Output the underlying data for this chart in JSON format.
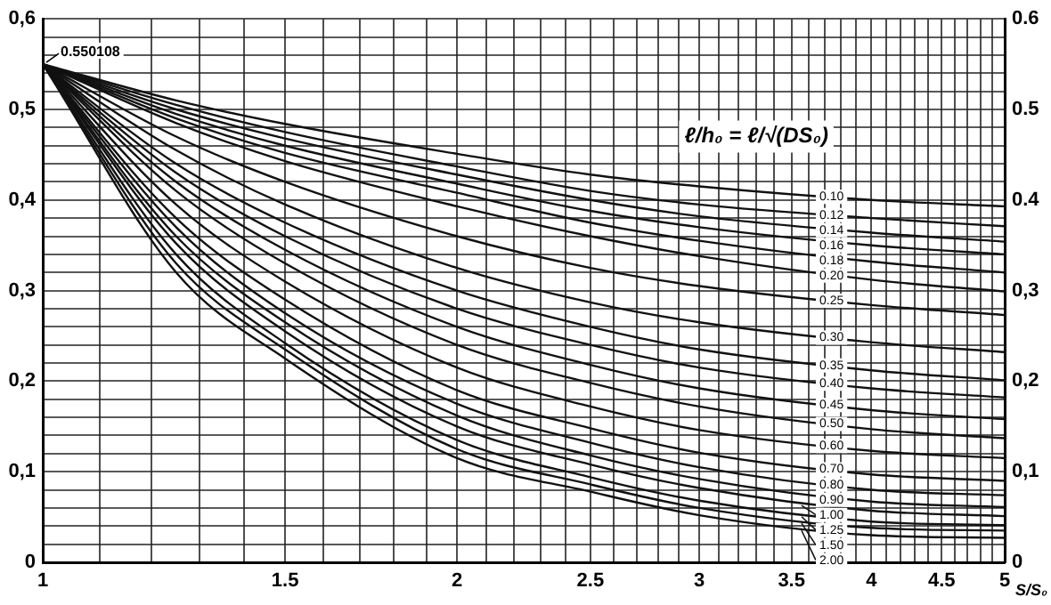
{
  "chart_data": {
    "type": "line",
    "log": "x",
    "xlabel": "S/S₀",
    "legend_title": "ℓ/h₀ = ℓ/√(DS₀)",
    "annotations": [
      {
        "text": "0.550108",
        "x": 1,
        "y": 0.55
      }
    ],
    "xlim": [
      1,
      5
    ],
    "xticks": [
      {
        "value": 1,
        "label": "1"
      },
      {
        "value": 1.1,
        "label": null
      },
      {
        "value": 1.2,
        "label": null
      },
      {
        "value": 1.3,
        "label": null
      },
      {
        "value": 1.4,
        "label": null
      },
      {
        "value": 1.5,
        "label": "1.5"
      },
      {
        "value": 1.6,
        "label": null
      },
      {
        "value": 1.7,
        "label": null
      },
      {
        "value": 1.8,
        "label": null
      },
      {
        "value": 1.9,
        "label": null
      },
      {
        "value": 2,
        "label": "2"
      },
      {
        "value": 2.1,
        "label": null
      },
      {
        "value": 2.2,
        "label": null
      },
      {
        "value": 2.3,
        "label": null
      },
      {
        "value": 2.4,
        "label": null
      },
      {
        "value": 2.5,
        "label": "2.5"
      },
      {
        "value": 2.6,
        "label": null
      },
      {
        "value": 2.7,
        "label": null
      },
      {
        "value": 2.8,
        "label": null
      },
      {
        "value": 2.9,
        "label": null
      },
      {
        "value": 3,
        "label": "3"
      },
      {
        "value": 3.1,
        "label": null
      },
      {
        "value": 3.2,
        "label": null
      },
      {
        "value": 3.3,
        "label": null
      },
      {
        "value": 3.4,
        "label": null
      },
      {
        "value": 3.5,
        "label": "3.5"
      },
      {
        "value": 3.6,
        "label": null
      },
      {
        "value": 3.7,
        "label": null
      },
      {
        "value": 3.8,
        "label": null
      },
      {
        "value": 3.9,
        "label": null
      },
      {
        "value": 4,
        "label": "4"
      },
      {
        "value": 4.1,
        "label": null
      },
      {
        "value": 4.2,
        "label": null
      },
      {
        "value": 4.3,
        "label": null
      },
      {
        "value": 4.4,
        "label": null
      },
      {
        "value": 4.5,
        "label": "4.5"
      },
      {
        "value": 4.6,
        "label": null
      },
      {
        "value": 4.7,
        "label": null
      },
      {
        "value": 4.8,
        "label": null
      },
      {
        "value": 4.9,
        "label": null
      },
      {
        "value": 5,
        "label": "5"
      }
    ],
    "ylim": [
      0,
      0.6
    ],
    "yticks": [
      {
        "value": 0,
        "label": "0"
      },
      {
        "value": 0.02,
        "label": null
      },
      {
        "value": 0.04,
        "label": null
      },
      {
        "value": 0.06,
        "label": null
      },
      {
        "value": 0.08,
        "label": null
      },
      {
        "value": 0.1,
        "label": "0,1"
      },
      {
        "value": 0.12,
        "label": null
      },
      {
        "value": 0.14,
        "label": null
      },
      {
        "value": 0.16,
        "label": null
      },
      {
        "value": 0.18,
        "label": null
      },
      {
        "value": 0.2,
        "label": "0,2"
      },
      {
        "value": 0.22,
        "label": null
      },
      {
        "value": 0.24,
        "label": null
      },
      {
        "value": 0.26,
        "label": null
      },
      {
        "value": 0.28,
        "label": null
      },
      {
        "value": 0.3,
        "label": "0,3"
      },
      {
        "value": 0.32,
        "label": null
      },
      {
        "value": 0.34,
        "label": null
      },
      {
        "value": 0.36,
        "label": null
      },
      {
        "value": 0.38,
        "label": null
      },
      {
        "value": 0.4,
        "label": "0,4"
      },
      {
        "value": 0.42,
        "label": null
      },
      {
        "value": 0.44,
        "label": null
      },
      {
        "value": 0.46,
        "label": null
      },
      {
        "value": 0.48,
        "label": null
      },
      {
        "value": 0.5,
        "label": "0,5"
      },
      {
        "value": 0.52,
        "label": null
      },
      {
        "value": 0.54,
        "label": null
      },
      {
        "value": 0.56,
        "label": null
      },
      {
        "value": 0.58,
        "label": null
      },
      {
        "value": 0.6,
        "label": "0,6"
      }
    ],
    "y2lim": [
      0,
      0.6
    ],
    "y2ticks": [
      {
        "value": 0,
        "label": "0"
      },
      {
        "value": 0.1,
        "label": "0,1"
      },
      {
        "value": 0.2,
        "label": "0,2"
      },
      {
        "value": 0.3,
        "label": "0,3"
      },
      {
        "value": 0.4,
        "label": "0.4"
      },
      {
        "value": 0.5,
        "label": "0.5"
      },
      {
        "value": 0.6,
        "label": "0.6"
      }
    ],
    "grid": true,
    "legend": "right",
    "marker": "none",
    "line_style": "solid",
    "x": [
      1,
      1.25,
      1.5,
      2,
      2.5,
      3,
      4,
      5
    ],
    "series": [
      {
        "name": "0.10",
        "color": "#111111",
        "values": [
          0.55,
          0.51,
          0.484,
          0.451,
          0.428,
          0.415,
          0.4,
          0.393
        ]
      },
      {
        "name": "0.12",
        "color": "#111111",
        "values": [
          0.55,
          0.505,
          0.475,
          0.437,
          0.41,
          0.395,
          0.38,
          0.371
        ]
      },
      {
        "name": "0.14",
        "color": "#111111",
        "values": [
          0.55,
          0.5,
          0.468,
          0.428,
          0.4,
          0.382,
          0.364,
          0.354
        ]
      },
      {
        "name": "0.16",
        "color": "#111111",
        "values": [
          0.55,
          0.495,
          0.46,
          0.418,
          0.388,
          0.37,
          0.35,
          0.34
        ]
      },
      {
        "name": "0.18",
        "color": "#111111",
        "values": [
          0.55,
          0.49,
          0.452,
          0.408,
          0.375,
          0.355,
          0.332,
          0.32
        ]
      },
      {
        "name": "0.20",
        "color": "#111111",
        "values": [
          0.55,
          0.485,
          0.443,
          0.393,
          0.36,
          0.338,
          0.312,
          0.299
        ]
      },
      {
        "name": "0.25",
        "color": "#111111",
        "values": [
          0.55,
          0.47,
          0.42,
          0.36,
          0.325,
          0.305,
          0.284,
          0.273
        ]
      },
      {
        "name": "0.30",
        "color": "#111111",
        "values": [
          0.55,
          0.455,
          0.395,
          0.325,
          0.287,
          0.265,
          0.243,
          0.232
        ]
      },
      {
        "name": "0.35",
        "color": "#111111",
        "values": [
          0.55,
          0.44,
          0.375,
          0.3,
          0.26,
          0.235,
          0.212,
          0.201
        ]
      },
      {
        "name": "0.40",
        "color": "#111111",
        "values": [
          0.55,
          0.43,
          0.36,
          0.28,
          0.24,
          0.215,
          0.192,
          0.182
        ]
      },
      {
        "name": "0.45",
        "color": "#111111",
        "values": [
          0.55,
          0.42,
          0.345,
          0.26,
          0.218,
          0.192,
          0.168,
          0.158
        ]
      },
      {
        "name": "0.50",
        "color": "#111111",
        "values": [
          0.55,
          0.41,
          0.33,
          0.24,
          0.198,
          0.172,
          0.147,
          0.137
        ]
      },
      {
        "name": "0.60",
        "color": "#111111",
        "values": [
          0.55,
          0.395,
          0.31,
          0.215,
          0.172,
          0.146,
          0.123,
          0.115
        ]
      },
      {
        "name": "0.70",
        "color": "#111111",
        "values": [
          0.55,
          0.38,
          0.29,
          0.19,
          0.148,
          0.121,
          0.097,
          0.09
        ]
      },
      {
        "name": "0.80",
        "color": "#111111",
        "values": [
          0.55,
          0.37,
          0.275,
          0.175,
          0.132,
          0.105,
          0.08,
          0.074
        ]
      },
      {
        "name": "0.90",
        "color": "#111111",
        "values": [
          0.55,
          0.36,
          0.265,
          0.162,
          0.118,
          0.092,
          0.067,
          0.061
        ]
      },
      {
        "name": "1.00",
        "color": "#111111",
        "values": [
          0.55,
          0.352,
          0.255,
          0.15,
          0.108,
          0.082,
          0.057,
          0.051
        ]
      },
      {
        "name": "1.25",
        "color": "#111111",
        "values": [
          0.55,
          0.34,
          0.242,
          0.135,
          0.094,
          0.068,
          0.045,
          0.041
        ]
      },
      {
        "name": "1.50",
        "color": "#111111",
        "values": [
          0.55,
          0.33,
          0.235,
          0.125,
          0.086,
          0.06,
          0.038,
          0.035
        ]
      },
      {
        "name": "2.00",
        "color": "#111111",
        "values": [
          0.55,
          0.32,
          0.225,
          0.115,
          0.078,
          0.052,
          0.03,
          0.027
        ]
      }
    ]
  }
}
